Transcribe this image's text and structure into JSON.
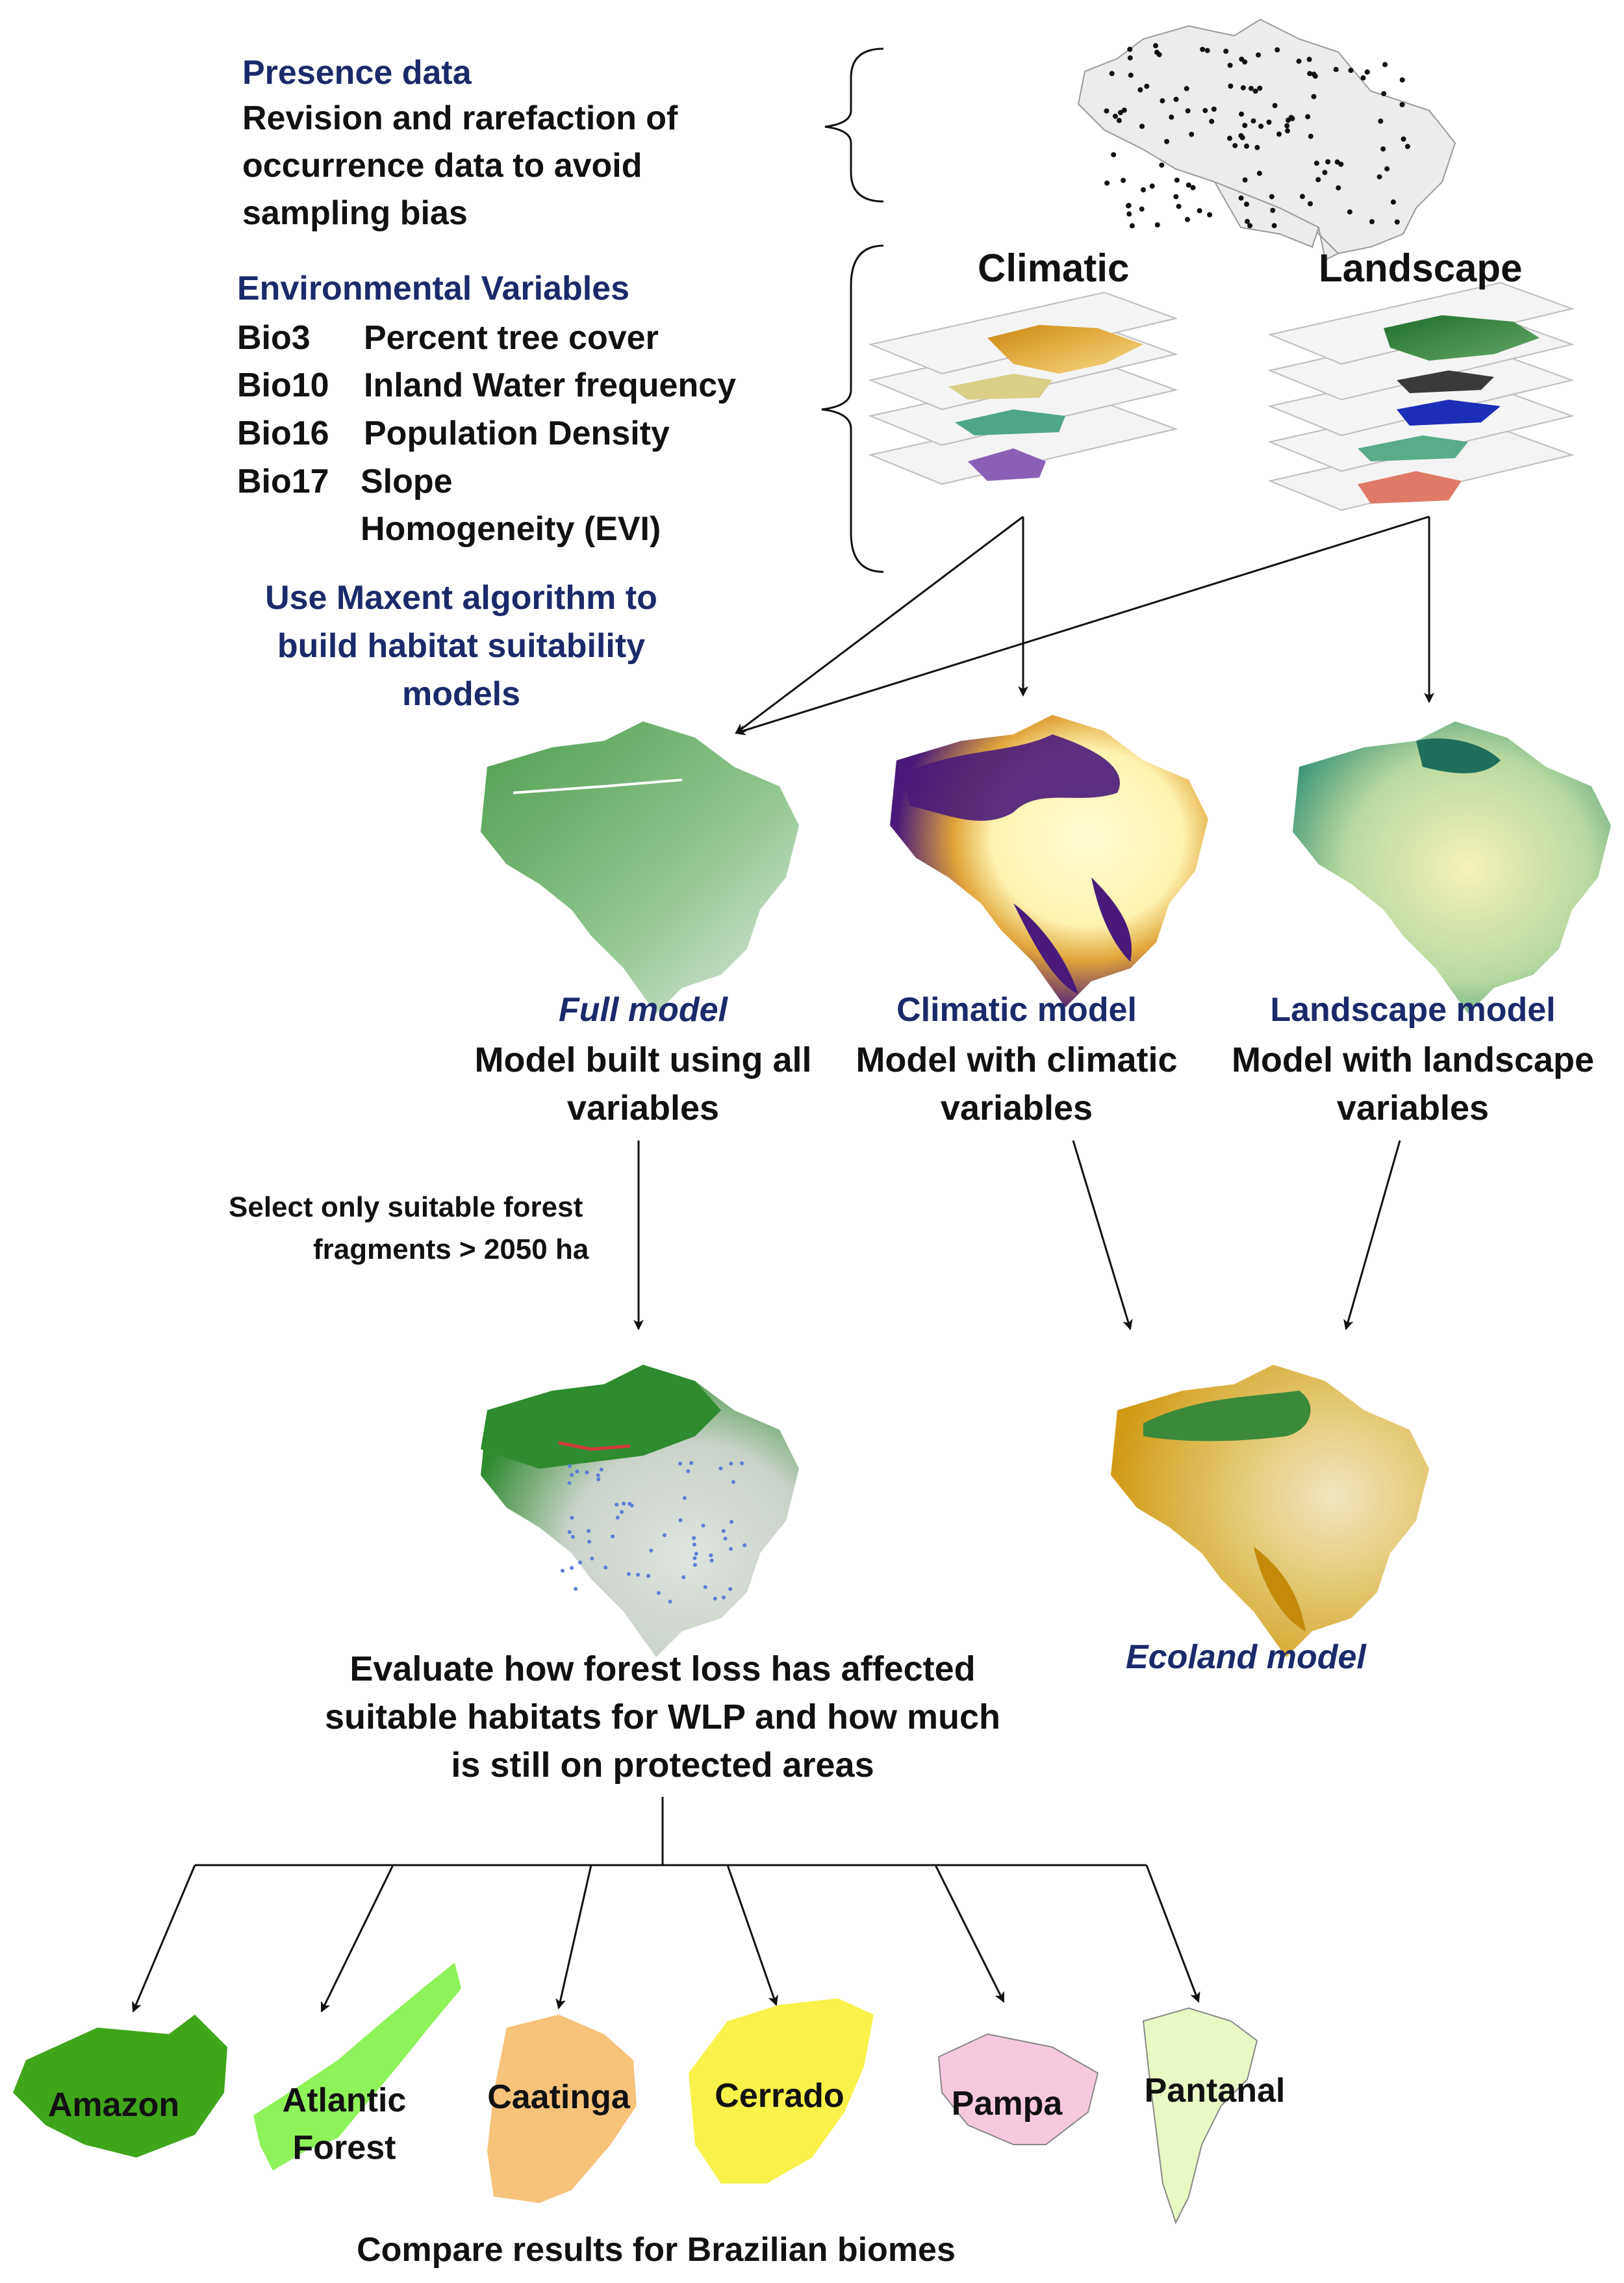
{
  "presence": {
    "heading": "Presence data",
    "lines": [
      "Revision and rarefaction of",
      "occurrence data to avoid",
      "sampling bias"
    ]
  },
  "environmental": {
    "heading": "Environmental Variables",
    "rows": [
      {
        "code": "Bio3",
        "name": "Percent tree cover"
      },
      {
        "code": "Bio10",
        "name": "Inland Water frequency"
      },
      {
        "code": "Bio16",
        "name": "Population Density"
      },
      {
        "code": "Bio17",
        "name": "Slope"
      },
      {
        "code": "",
        "name": "Homogeneity (EVI)"
      }
    ]
  },
  "layer_groups": {
    "climatic": "Climatic",
    "landscape": "Landscape"
  },
  "maxent": {
    "lines": [
      "Use Maxent algorithm to",
      "build habitat suitability",
      "models"
    ]
  },
  "models": {
    "full": {
      "title": "Full model",
      "desc": [
        "Model built using all",
        "variables"
      ]
    },
    "climatic": {
      "title": "Climatic model",
      "desc": [
        "Model with climatic",
        "variables"
      ]
    },
    "landscape": {
      "title": "Landscape model",
      "desc": [
        "Model with landscape",
        "variables"
      ]
    }
  },
  "select_step": {
    "lines": [
      "Select only suitable forest",
      "fragments > 2050 ha"
    ]
  },
  "ecoland": {
    "title": "Ecoland model"
  },
  "evaluate": {
    "lines": [
      "Evaluate how forest loss has affected",
      "suitable habitats for WLP and how much",
      "is still on protected areas"
    ]
  },
  "biomes": [
    {
      "lines": [
        "Amazon"
      ],
      "color": "#3fa51a"
    },
    {
      "lines": [
        "Atlantic",
        "Forest"
      ],
      "color": "#8ef25a"
    },
    {
      "lines": [
        "Caatinga"
      ],
      "color": "#f7c27a"
    },
    {
      "lines": [
        "Cerrado"
      ],
      "color": "#f8f24a"
    },
    {
      "lines": [
        "Pampa"
      ],
      "color": "#f7c9df"
    },
    {
      "lines": [
        "Pantanal"
      ],
      "color": "#e9f9c4"
    }
  ],
  "footer": "Compare results for Brazilian biomes",
  "colors": {
    "navy": "#1b2a6b",
    "full_green": "#5fae5f",
    "climatic_purple": "#4a1a7a",
    "climatic_yellow": "#fdf7b8",
    "landscape_teal": "#2f8f74",
    "landscape_pale": "#f2f2b0",
    "fragments_green": "#2e8b2e",
    "ecoland_ochre": "#d9a21e"
  }
}
